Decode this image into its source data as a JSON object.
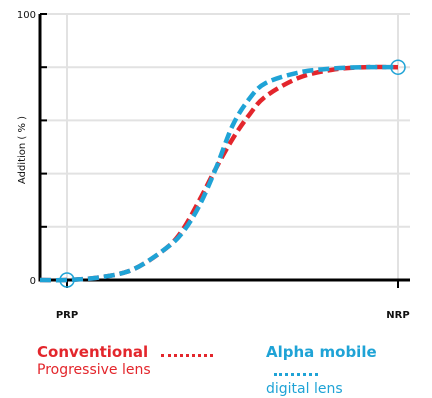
{
  "chart_data": {
    "type": "line",
    "ylabel": "Addition ( % )",
    "xlabel": "",
    "x_ticks": [
      "PRP",
      "NRP"
    ],
    "y_tick_labels": [
      "0",
      "100"
    ],
    "ylim": [
      0,
      100
    ],
    "xlim": [
      0,
      1
    ],
    "grid": true,
    "legend_placement": "bottom",
    "x": [
      0.0,
      0.1,
      0.2,
      0.3,
      0.35,
      0.4,
      0.45,
      0.5,
      0.55,
      0.6,
      0.7,
      0.8,
      0.9,
      1.0
    ],
    "series": [
      {
        "name": "Conventional Progressive lens",
        "color": "#e3262c",
        "values": [
          0,
          1,
          4,
          12,
          19,
          30,
          42,
          53,
          62,
          69,
          76,
          79,
          80,
          80
        ]
      },
      {
        "name": "Alpha mobile digital lens",
        "color": "#1fa3d6",
        "values": [
          0,
          1,
          4,
          12,
          18,
          28,
          42,
          58,
          68,
          74,
          78,
          79.5,
          80,
          80
        ]
      }
    ],
    "markers": [
      {
        "label": "PRP",
        "x": 0,
        "y": 0
      },
      {
        "label": "NRP",
        "x": 1,
        "y": 80
      }
    ]
  },
  "legend": [
    {
      "name": "Conventional",
      "sub": "Progressive lens",
      "color": "#e3262c"
    },
    {
      "name": "Alpha mobile",
      "sub": "digital lens",
      "color": "#1fa3d6"
    }
  ]
}
